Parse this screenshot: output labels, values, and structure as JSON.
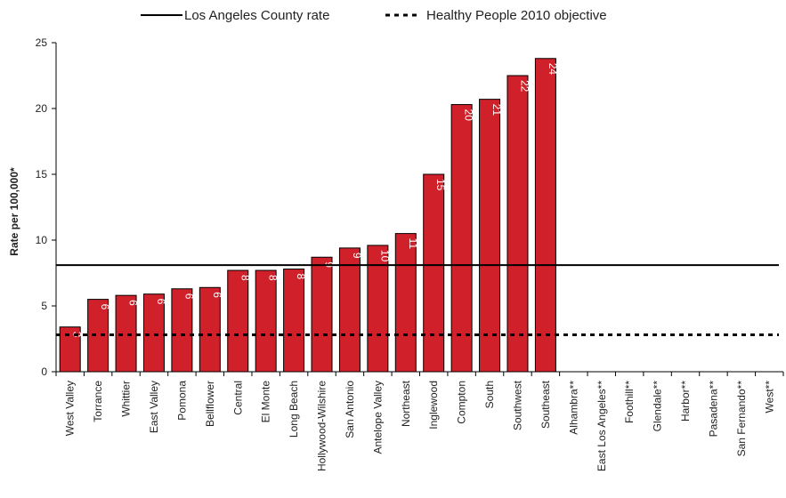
{
  "chart_data": {
    "type": "bar",
    "title": "",
    "xlabel": "",
    "ylabel": "Rate per 100,000*",
    "ylim": [
      0,
      25
    ],
    "yticks": [
      0,
      5,
      10,
      15,
      20,
      25
    ],
    "grid": false,
    "legend_position": "top",
    "bar_color": "#d0202a",
    "categories": [
      "West Valley",
      "Torrance",
      "Whittier",
      "East Valley",
      "Pomona",
      "Bellflower",
      "Central",
      "El Monte",
      "Long Beach",
      "Hollywood-Wilshire",
      "San Antonio",
      "Antelope Valley",
      "Northeast",
      "Inglewood",
      "Compton",
      "South",
      "Southwest",
      "Southeast",
      "Alhambra**",
      "East Los Angeles**",
      "Foothill**",
      "Glendale**",
      "Harbor**",
      "Pasadena**",
      "San Fernando**",
      "West**"
    ],
    "values": [
      3.4,
      5.5,
      5.8,
      5.9,
      6.3,
      6.4,
      7.7,
      7.7,
      7.8,
      8.7,
      9.4,
      9.6,
      10.5,
      15.0,
      20.3,
      20.7,
      22.5,
      23.8,
      null,
      null,
      null,
      null,
      null,
      null,
      null,
      null
    ],
    "data_labels": [
      "3",
      "6",
      "6",
      "6",
      "6",
      "6",
      "8",
      "8",
      "8",
      "9",
      "9",
      "10",
      "11",
      "15",
      "20",
      "21",
      "22",
      "24",
      "",
      "",
      "",
      "",
      "",
      "",
      "",
      ""
    ],
    "reference_lines": [
      {
        "name": "Los Angeles County rate",
        "value": 8.1,
        "style": "solid"
      },
      {
        "name": "Healthy People 2010 objective",
        "value": 2.8,
        "style": "dashed"
      }
    ]
  }
}
